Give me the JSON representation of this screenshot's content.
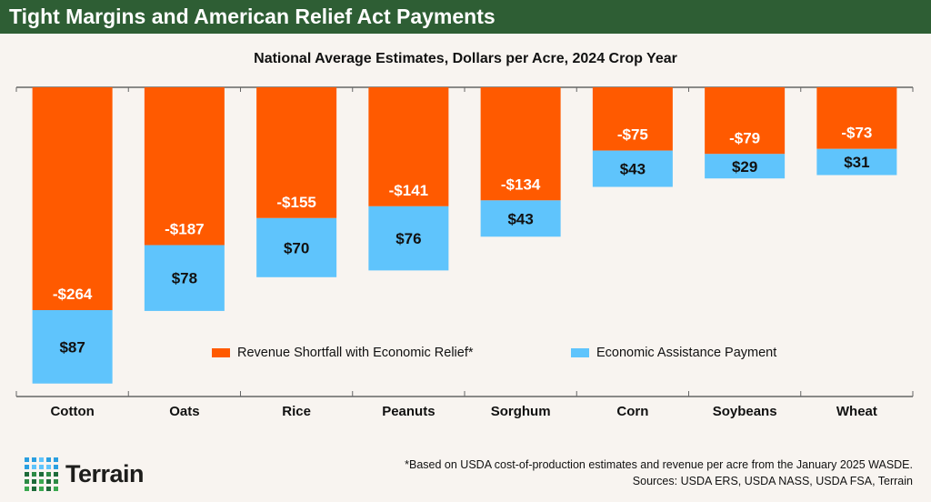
{
  "header": {
    "title": "Tight Margins and American Relief Act Payments"
  },
  "chart_data": {
    "type": "bar",
    "stacked": true,
    "title": "National Average Estimates, Dollars per Acre, 2024 Crop Year",
    "categories": [
      "Cotton",
      "Oats",
      "Rice",
      "Peanuts",
      "Sorghum",
      "Corn",
      "Soybeans",
      "Wheat"
    ],
    "series": [
      {
        "name": "Revenue Shortfall with Economic Relief*",
        "color": "#ff5a00",
        "values": [
          -264,
          -187,
          -155,
          -141,
          -134,
          -75,
          -79,
          -73
        ],
        "labels": [
          "-$264",
          "-$187",
          "-$155",
          "-$141",
          "-$134",
          "-$75",
          "-$79",
          "-$73"
        ]
      },
      {
        "name": "Economic Assistance Payment",
        "color": "#5fc4fc",
        "values": [
          87,
          78,
          70,
          76,
          43,
          43,
          29,
          31
        ],
        "labels": [
          "$87",
          "$78",
          "$70",
          "$76",
          "$43",
          "$43",
          "$29",
          "$31"
        ]
      }
    ],
    "legend": "center",
    "grid": false
  },
  "footer": {
    "note": "*Based on USDA cost-of-production estimates and revenue per acre from the January 2025 WASDE.",
    "sources": "Sources: USDA ERS, USDA NASS, USDA FSA, Terrain"
  },
  "logo": {
    "text": "Terrain"
  }
}
